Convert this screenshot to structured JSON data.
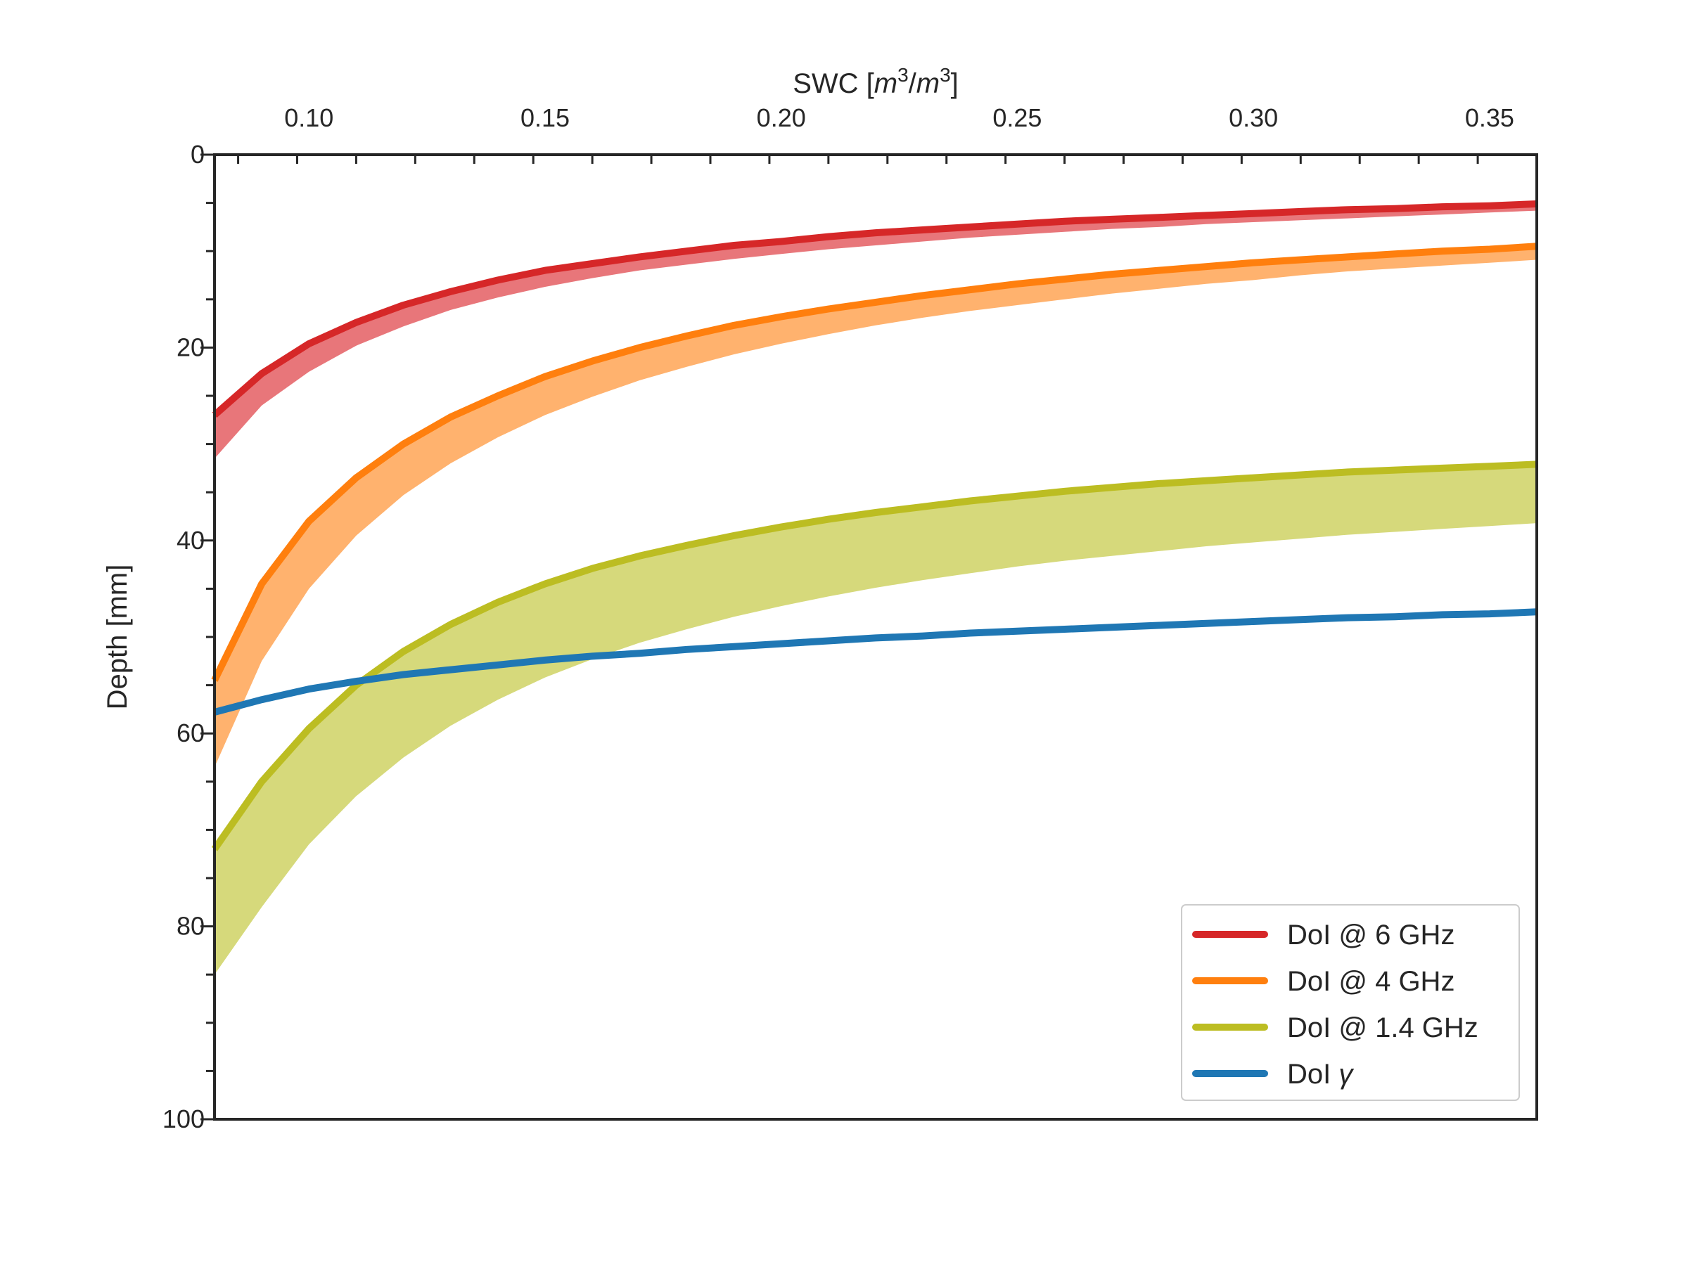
{
  "chart_data": {
    "type": "line",
    "title": "",
    "xlabel": {
      "prefix": "SWC [",
      "m1": "m",
      "exp1": "3",
      "slash": "/",
      "m2": "m",
      "exp2": "3",
      "suffix": "]"
    },
    "ylabel": "Depth [mm]",
    "xlim": [
      0.08,
      0.36
    ],
    "ylim": [
      0,
      100
    ],
    "y_inverted": true,
    "x_axis_position": "top",
    "x_ticks": [
      0.1,
      0.15,
      0.2,
      0.25,
      0.3,
      0.35
    ],
    "x_tick_labels": [
      "0.10",
      "0.15",
      "0.20",
      "0.25",
      "0.30",
      "0.35"
    ],
    "y_ticks": [
      0,
      20,
      40,
      60,
      80,
      100
    ],
    "y_tick_labels": [
      "0",
      "20",
      "40",
      "60",
      "80",
      "100"
    ],
    "grid": false,
    "legend_position": "bottom-right",
    "x": [
      0.08,
      0.09,
      0.1,
      0.11,
      0.12,
      0.13,
      0.14,
      0.15,
      0.16,
      0.17,
      0.18,
      0.19,
      0.2,
      0.21,
      0.22,
      0.23,
      0.24,
      0.25,
      0.26,
      0.27,
      0.28,
      0.29,
      0.3,
      0.31,
      0.32,
      0.33,
      0.34,
      0.35,
      0.36
    ],
    "series": [
      {
        "name": "DoI @ 6 GHz",
        "color": "#d62728",
        "band_color": "#e8767a",
        "values": [
          27.0,
          22.7,
          19.6,
          17.4,
          15.6,
          14.2,
          13.0,
          12.0,
          11.3,
          10.6,
          10.0,
          9.4,
          9.0,
          8.5,
          8.1,
          7.8,
          7.5,
          7.2,
          6.9,
          6.7,
          6.5,
          6.3,
          6.1,
          5.9,
          5.7,
          5.6,
          5.4,
          5.3,
          5.1
        ],
        "band_lower": [
          31.5,
          26.0,
          22.5,
          19.8,
          17.8,
          16.1,
          14.8,
          13.7,
          12.8,
          12.0,
          11.4,
          10.8,
          10.3,
          9.8,
          9.4,
          9.0,
          8.6,
          8.3,
          8.0,
          7.7,
          7.5,
          7.2,
          7.0,
          6.8,
          6.6,
          6.4,
          6.2,
          6.0,
          5.8
        ]
      },
      {
        "name": "DoI @ 4 GHz",
        "color": "#ff7f0e",
        "band_color": "#ffb26e",
        "values": [
          54.5,
          44.5,
          38.0,
          33.5,
          30.0,
          27.2,
          25.0,
          23.0,
          21.4,
          20.0,
          18.8,
          17.7,
          16.8,
          16.0,
          15.3,
          14.6,
          14.0,
          13.4,
          12.9,
          12.4,
          12.0,
          11.6,
          11.2,
          10.9,
          10.6,
          10.3,
          10.0,
          9.8,
          9.5
        ],
        "band_lower": [
          63.5,
          52.5,
          45.0,
          39.5,
          35.3,
          32.0,
          29.3,
          27.0,
          25.1,
          23.4,
          22.0,
          20.7,
          19.6,
          18.6,
          17.7,
          16.9,
          16.2,
          15.6,
          15.0,
          14.4,
          13.9,
          13.4,
          13.0,
          12.5,
          12.1,
          11.8,
          11.5,
          11.2,
          10.9
        ]
      },
      {
        "name": "DoI @ 1.4 GHz",
        "color": "#bcbd22",
        "band_color": "#d6d97b",
        "values": [
          72.0,
          65.0,
          59.5,
          55.0,
          51.5,
          48.7,
          46.4,
          44.5,
          42.9,
          41.6,
          40.5,
          39.5,
          38.6,
          37.8,
          37.1,
          36.5,
          35.9,
          35.4,
          34.9,
          34.5,
          34.1,
          33.8,
          33.5,
          33.2,
          32.9,
          32.7,
          32.5,
          32.3,
          32.1
        ],
        "band_lower": [
          85.0,
          78.0,
          71.5,
          66.5,
          62.5,
          59.2,
          56.5,
          54.2,
          52.3,
          50.6,
          49.2,
          47.9,
          46.8,
          45.8,
          44.9,
          44.1,
          43.4,
          42.7,
          42.1,
          41.6,
          41.1,
          40.6,
          40.2,
          39.8,
          39.4,
          39.1,
          38.8,
          38.5,
          38.2
        ]
      },
      {
        "name": "DoI γ",
        "color": "#1f77b4",
        "values": [
          57.8,
          56.5,
          55.4,
          54.6,
          53.9,
          53.4,
          52.9,
          52.4,
          52.0,
          51.7,
          51.3,
          51.0,
          50.7,
          50.4,
          50.1,
          49.9,
          49.6,
          49.4,
          49.2,
          49.0,
          48.8,
          48.6,
          48.4,
          48.2,
          48.0,
          47.9,
          47.7,
          47.6,
          47.4
        ]
      }
    ],
    "legend": [
      {
        "prefix": "DoI @ 6 GHz",
        "italic": "",
        "color": "#d62728"
      },
      {
        "prefix": "DoI @ 4 GHz",
        "italic": "",
        "color": "#ff7f0e"
      },
      {
        "prefix": "DoI @ 1.4 GHz",
        "italic": "",
        "color": "#bcbd22"
      },
      {
        "prefix": "DoI ",
        "italic": "γ",
        "color": "#1f77b4"
      }
    ]
  }
}
